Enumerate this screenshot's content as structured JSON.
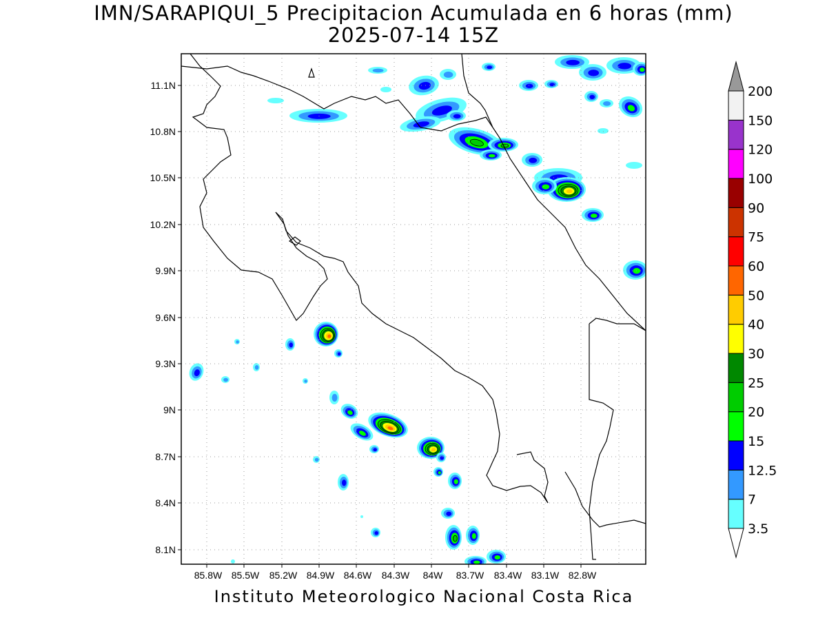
{
  "header": {
    "title_line1": "IMN/SARAPIQUI_5 Precipitacion Acumulada en 6 horas (mm)",
    "title_line2": "2025-07-14 15Z"
  },
  "footer": {
    "text": "Instituto Meteorologico Nacional Costa Rica"
  },
  "map": {
    "lon_range": [
      -86.05,
      -82.45
    ],
    "lat_range": [
      8.0,
      11.3
    ],
    "x_ticks": [
      "85.8W",
      "85.5W",
      "85.2W",
      "84.9W",
      "84.6W",
      "84.3W",
      "84W",
      "83.7W",
      "83.4W",
      "83.1W",
      "82.8W"
    ],
    "y_ticks": [
      "11.1N",
      "10.8N",
      "10.5N",
      "10.2N",
      "9.9N",
      "9.6N",
      "9.3N",
      "9N",
      "8.7N",
      "8.4N",
      "8.1N"
    ],
    "grid": true
  },
  "colorbar": {
    "levels": [
      "3.5",
      "7",
      "12.5",
      "15",
      "20",
      "25",
      "30",
      "40",
      "50",
      "60",
      "75",
      "90",
      "100",
      "120",
      "150",
      "200"
    ],
    "colors": [
      "#66ffff",
      "#3399ff",
      "#0000ff",
      "#00ff00",
      "#00cc00",
      "#008800",
      "#ffff00",
      "#ffcc00",
      "#ff6600",
      "#ff0000",
      "#cc3300",
      "#990000",
      "#ff00ff",
      "#9933cc",
      "#f2f2f2",
      "#999999"
    ]
  }
}
